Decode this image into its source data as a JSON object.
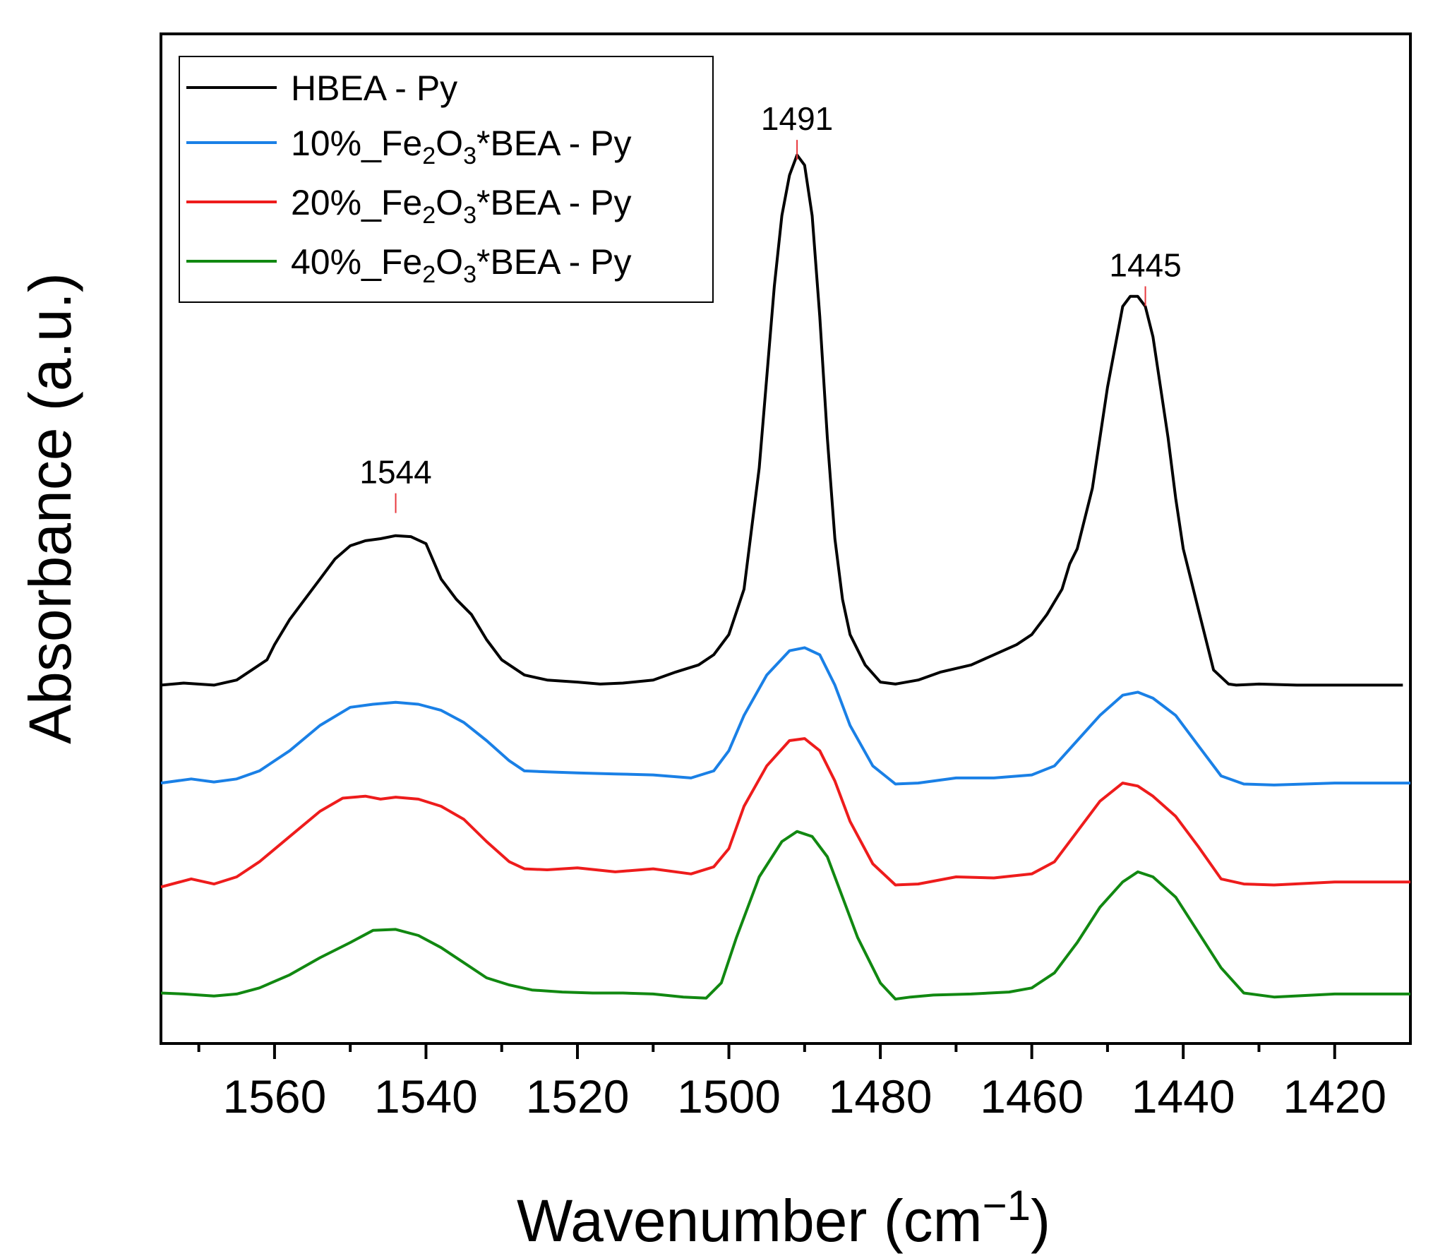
{
  "chart_data": {
    "type": "line",
    "title": "",
    "xlabel": "Wavenumber (cm",
    "xlabel_superscript": "−1",
    "xlabel_suffix": ")",
    "ylabel": "Absorbance (a.u.)",
    "xlim": [
      1575,
      1410
    ],
    "ylim": [
      0,
      100
    ],
    "x_reversed": true,
    "yticks_shown": false,
    "grid": false,
    "legend_position": "top-left",
    "x_ticks": [
      1560,
      1540,
      1520,
      1500,
      1480,
      1460,
      1440,
      1420
    ],
    "x_tick_labels": [
      "1560",
      "1540",
      "1520",
      "1500",
      "1480",
      "1460",
      "1440",
      "1420"
    ],
    "annotations": [
      {
        "x": 1544,
        "y": 54.5,
        "label": "1544",
        "color": "#e8383d"
      },
      {
        "x": 1491,
        "y": 89.5,
        "label": "1491",
        "color": "#e8383d"
      },
      {
        "x": 1445,
        "y": 75,
        "label": "1445",
        "color": "#e8383d"
      }
    ],
    "series": [
      {
        "name": "HBEA - Py",
        "legend_main": "HBEA - Py",
        "legend_sub": "",
        "legend_mid": "",
        "legend_sub2": "",
        "legend_end": "",
        "color": "#000000",
        "x": [
          1575,
          1572,
          1568,
          1565,
          1563,
          1561,
          1560,
          1558,
          1556,
          1554,
          1552,
          1550,
          1548,
          1546,
          1544,
          1542,
          1540,
          1538,
          1536,
          1534,
          1532,
          1530,
          1527,
          1524,
          1520,
          1517,
          1514,
          1510,
          1507,
          1504,
          1502,
          1500,
          1498,
          1496,
          1494,
          1493,
          1492,
          1491,
          1490,
          1489,
          1488,
          1487,
          1486,
          1485,
          1484,
          1482,
          1480,
          1478,
          1475,
          1472,
          1468,
          1465,
          1462,
          1460,
          1458,
          1456,
          1455,
          1454,
          1452,
          1450,
          1448,
          1447,
          1446,
          1445,
          1444,
          1443,
          1442,
          1441,
          1440,
          1438,
          1436,
          1434,
          1433,
          1430,
          1425,
          1420,
          1415,
          1411
        ],
        "y": [
          35.5,
          35.7,
          35.5,
          36,
          37,
          38,
          39.5,
          42,
          44,
          46,
          48,
          49.3,
          49.8,
          50,
          50.3,
          50.2,
          49.5,
          46,
          44,
          42.5,
          40,
          38,
          36.5,
          36,
          35.8,
          35.6,
          35.7,
          36,
          36.8,
          37.5,
          38.5,
          40.5,
          45,
          57,
          75,
          82,
          86,
          88,
          87,
          82,
          72,
          60,
          50,
          44,
          40.5,
          37.5,
          35.8,
          35.6,
          36,
          36.8,
          37.5,
          38.5,
          39.5,
          40.5,
          42.5,
          45,
          47.5,
          49,
          55,
          65,
          73,
          74,
          74,
          73,
          70,
          65,
          60,
          54,
          49,
          43,
          37,
          35.6,
          35.5,
          35.6,
          35.5,
          35.5,
          35.5,
          35.5
        ]
      },
      {
        "name": "10%_Fe2O3*BEA - Py",
        "legend_main": "10%_Fe",
        "legend_sub": "2",
        "legend_mid": "O",
        "legend_sub2": "3",
        "legend_end": "*BEA - Py",
        "color": "#1a80e6",
        "x": [
          1575,
          1571,
          1568,
          1565,
          1562,
          1558,
          1554,
          1550,
          1547,
          1544,
          1541,
          1538,
          1535,
          1532,
          1529,
          1527,
          1524,
          1520,
          1515,
          1510,
          1505,
          1502,
          1500,
          1498,
          1495,
          1492,
          1490,
          1488,
          1486,
          1484,
          1481,
          1478,
          1475,
          1470,
          1465,
          1460,
          1457,
          1454,
          1451,
          1448,
          1446,
          1444,
          1441,
          1438,
          1435,
          1432,
          1428,
          1420,
          1410
        ],
        "y": [
          25.8,
          26.2,
          25.9,
          26.2,
          27,
          29,
          31.5,
          33.3,
          33.6,
          33.8,
          33.6,
          33,
          31.8,
          30,
          28,
          27,
          26.9,
          26.8,
          26.7,
          26.6,
          26.3,
          27,
          29,
          32.5,
          36.5,
          38.9,
          39.2,
          38.5,
          35.5,
          31.5,
          27.5,
          25.7,
          25.8,
          26.3,
          26.3,
          26.6,
          27.5,
          30,
          32.5,
          34.5,
          34.8,
          34.2,
          32.5,
          29.5,
          26.5,
          25.7,
          25.6,
          25.8,
          25.8
        ]
      },
      {
        "name": "20%_Fe2O3*BEA - Py",
        "legend_main": "20%_Fe",
        "legend_sub": "2",
        "legend_mid": "O",
        "legend_sub2": "3",
        "legend_end": "*BEA - Py",
        "color": "#ee1c1c",
        "x": [
          1575,
          1571,
          1568,
          1565,
          1562,
          1558,
          1554,
          1551,
          1548,
          1546,
          1544,
          1541,
          1538,
          1535,
          1532,
          1529,
          1527,
          1524,
          1520,
          1515,
          1510,
          1505,
          1502,
          1500,
          1498,
          1495,
          1492,
          1490,
          1488,
          1486,
          1484,
          1481,
          1478,
          1475,
          1470,
          1465,
          1460,
          1457,
          1454,
          1451,
          1448,
          1446,
          1444,
          1441,
          1438,
          1435,
          1432,
          1428,
          1420,
          1410
        ],
        "y": [
          15.5,
          16.3,
          15.8,
          16.5,
          18,
          20.5,
          23,
          24.3,
          24.5,
          24.2,
          24.4,
          24.2,
          23.5,
          22.2,
          20,
          18,
          17.3,
          17.2,
          17.4,
          17,
          17.3,
          16.8,
          17.5,
          19.3,
          23.5,
          27.5,
          30,
          30.2,
          29,
          26,
          22,
          17.8,
          15.7,
          15.8,
          16.5,
          16.4,
          16.8,
          18,
          21,
          24,
          25.8,
          25.5,
          24.5,
          22.5,
          19.5,
          16.3,
          15.8,
          15.7,
          16,
          16
        ]
      },
      {
        "name": "40%_Fe2O3*BEA - Py",
        "legend_main": "40%_Fe",
        "legend_sub": "2",
        "legend_mid": "O",
        "legend_sub2": "3",
        "legend_end": "*BEA - Py",
        "color": "#118811",
        "x": [
          1575,
          1572,
          1568,
          1565,
          1562,
          1558,
          1554,
          1550,
          1547,
          1544,
          1541,
          1538,
          1535,
          1532,
          1529,
          1526,
          1522,
          1518,
          1514,
          1510,
          1506,
          1503,
          1501,
          1499,
          1496,
          1493,
          1491,
          1489,
          1487,
          1485,
          1483,
          1480,
          1478,
          1476,
          1473,
          1468,
          1463,
          1460,
          1457,
          1454,
          1451,
          1448,
          1446,
          1444,
          1441,
          1438,
          1435,
          1432,
          1428,
          1420,
          1410
        ],
        "y": [
          5,
          4.9,
          4.7,
          4.9,
          5.5,
          6.8,
          8.5,
          10,
          11.2,
          11.3,
          10.7,
          9.5,
          8,
          6.5,
          5.8,
          5.3,
          5.1,
          5,
          5,
          4.9,
          4.6,
          4.5,
          6,
          10.5,
          16.5,
          20,
          21,
          20.5,
          18.5,
          14.5,
          10.5,
          6,
          4.4,
          4.6,
          4.8,
          4.9,
          5.1,
          5.5,
          7,
          10,
          13.5,
          16,
          17,
          16.5,
          14.5,
          11,
          7.5,
          5,
          4.6,
          4.9,
          4.9
        ]
      }
    ]
  }
}
